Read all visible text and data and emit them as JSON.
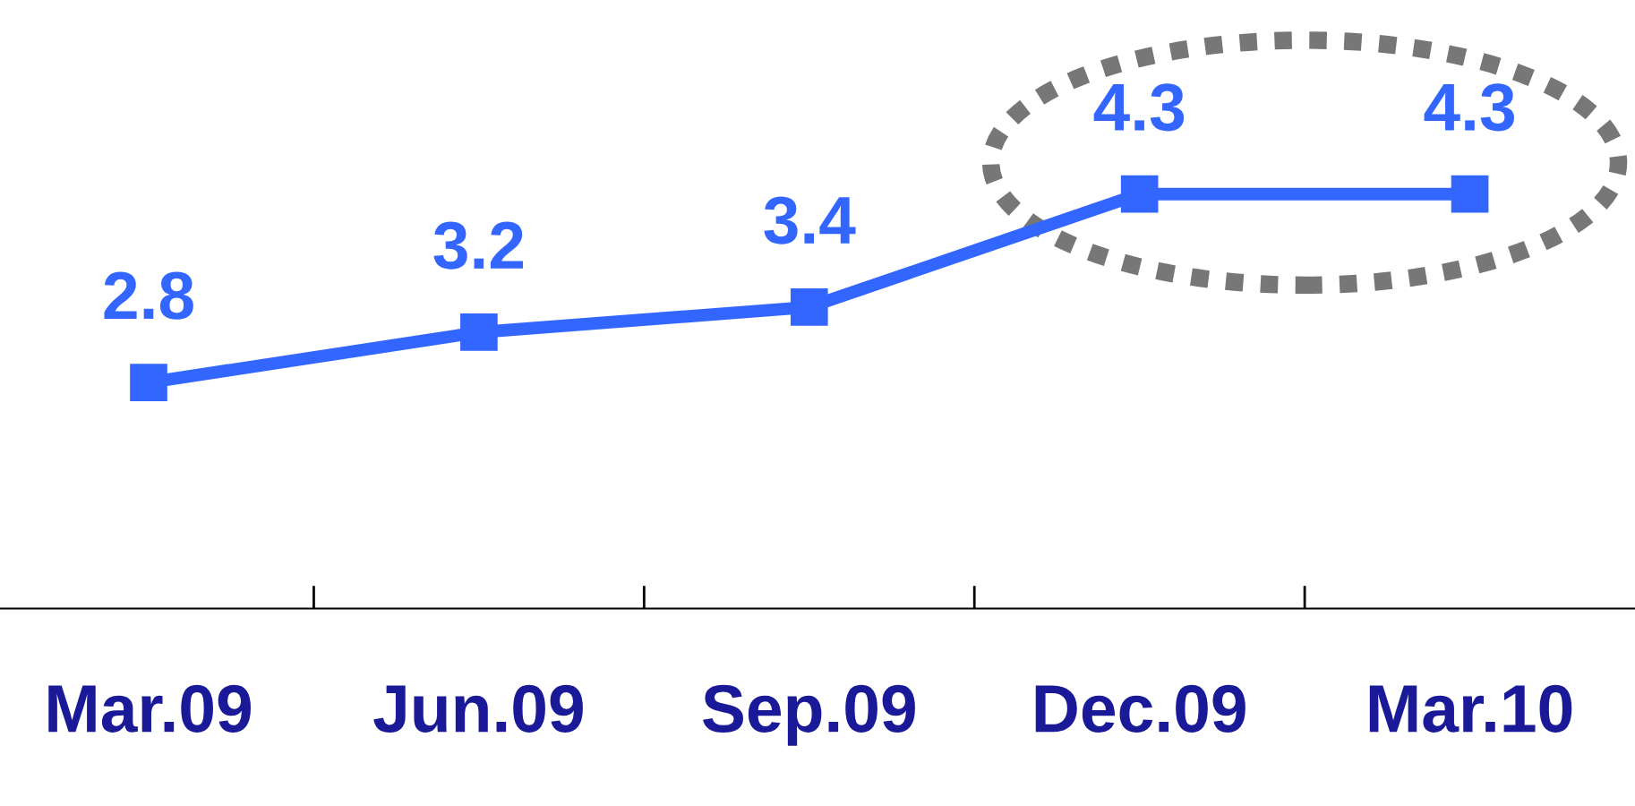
{
  "chart_data": {
    "type": "line",
    "categories": [
      "Mar.09",
      "Jun.09",
      "Sep.09",
      "Dec.09",
      "Mar.10"
    ],
    "series": [
      {
        "color": "#3366ff",
        "values": [
          2.8,
          3.2,
          3.4,
          4.3,
          4.3
        ]
      }
    ],
    "tick_labels": "x",
    "data_labels": true,
    "marker": "square",
    "line_style": "solid",
    "grid": false,
    "legend": false
  }
}
